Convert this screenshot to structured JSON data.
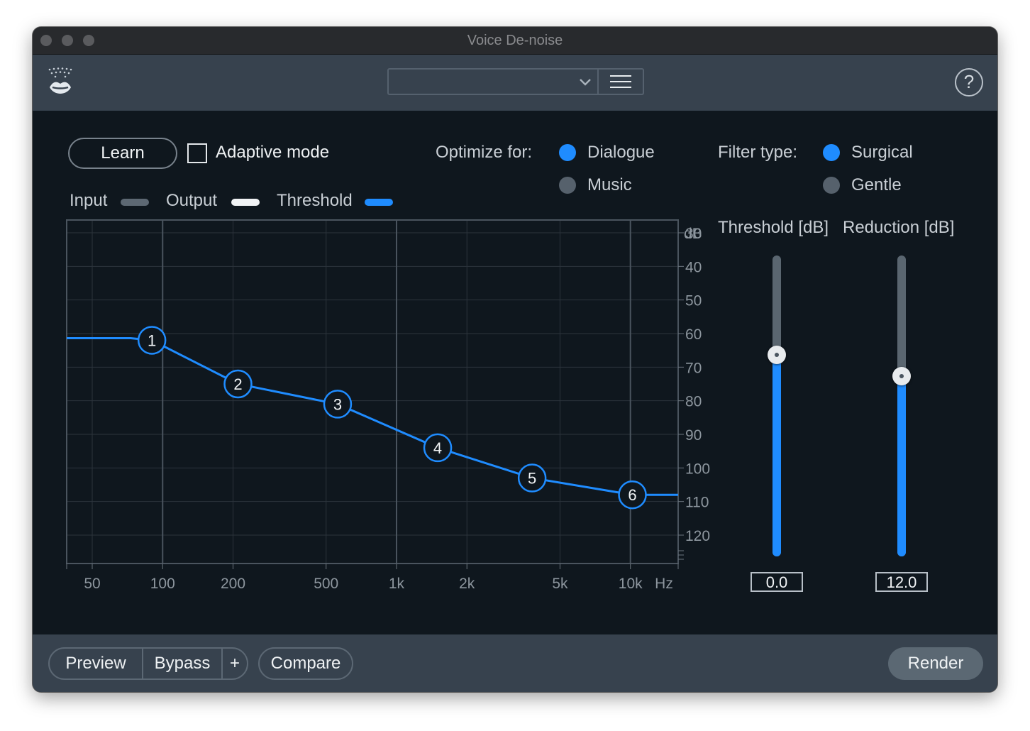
{
  "window": {
    "title": "Voice De-noise"
  },
  "header": {
    "logo_icon": "lips-icon",
    "preset_value": "",
    "menu_icon": "hamburger-menu-icon",
    "help_label": "?"
  },
  "controls": {
    "learn_label": "Learn",
    "adaptive_label": "Adaptive mode",
    "adaptive_checked": false,
    "optimize_label": "Optimize for:",
    "optimize_options": [
      {
        "label": "Dialogue",
        "selected": true
      },
      {
        "label": "Music",
        "selected": false
      }
    ],
    "filter_label": "Filter type:",
    "filter_options": [
      {
        "label": "Surgical",
        "selected": true
      },
      {
        "label": "Gentle",
        "selected": false
      }
    ]
  },
  "legend": {
    "input": "Input",
    "output": "Output",
    "threshold": "Threshold",
    "colors": {
      "input": "#5d6873",
      "output": "#f1f3f5",
      "threshold": "#1f8cff"
    }
  },
  "graph": {
    "db_unit": "dB",
    "db_ticks": [
      "30",
      "40",
      "50",
      "60",
      "70",
      "80",
      "90",
      "100",
      "110",
      "120"
    ],
    "freq_ticks": [
      "50",
      "100",
      "200",
      "500",
      "1k",
      "2k",
      "5k",
      "10k"
    ],
    "freq_unit": "Hz",
    "nodes": [
      {
        "label": "1",
        "freq_hz": 90,
        "db": -62
      },
      {
        "label": "2",
        "freq_hz": 210,
        "db": -75
      },
      {
        "label": "3",
        "freq_hz": 560,
        "db": -81
      },
      {
        "label": "4",
        "freq_hz": 1500,
        "db": -94
      },
      {
        "label": "5",
        "freq_hz": 3800,
        "db": -103
      },
      {
        "label": "6",
        "freq_hz": 10200,
        "db": -108
      }
    ],
    "threshold_color": "#1f8cff"
  },
  "sliders": {
    "threshold": {
      "label": "Threshold [dB]",
      "value": "0.0",
      "level": 0.67
    },
    "reduction": {
      "label": "Reduction [dB]",
      "value": "12.0",
      "level": 0.6
    }
  },
  "footer": {
    "preview_label": "Preview",
    "bypass_label": "Bypass",
    "plus_label": "+",
    "compare_label": "Compare",
    "render_label": "Render"
  }
}
